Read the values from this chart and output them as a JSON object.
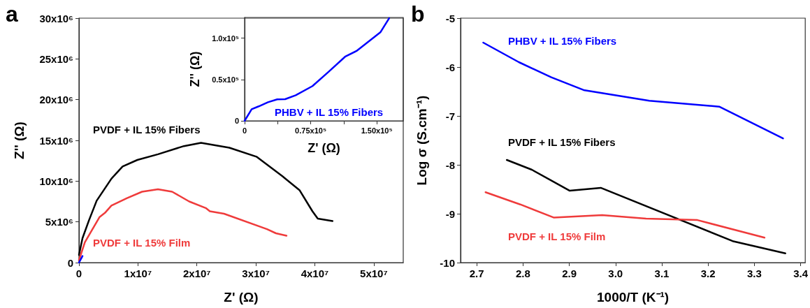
{
  "chart_data": [
    {
      "type": "line",
      "title": "a",
      "xlabel": "Z' (Ω)",
      "ylabel": "Z'' (Ω)",
      "xlim": [
        0,
        55000000
      ],
      "ylim": [
        0,
        30000000
      ],
      "xticks": [
        0,
        {
          "value": 10000000,
          "label": "1x10⁷"
        },
        {
          "value": 20000000,
          "label": "2x10⁷"
        },
        {
          "value": 30000000,
          "label": "3x10⁷"
        },
        {
          "value": 40000000,
          "label": "4x10⁷"
        },
        {
          "value": 50000000,
          "label": "5x10⁷"
        }
      ],
      "yticks": [
        0,
        {
          "value": 5000000,
          "label": "5x10⁶"
        },
        {
          "value": 10000000,
          "label": "10x10⁶"
        },
        {
          "value": 15000000,
          "label": "15x10⁶"
        },
        {
          "value": 20000000,
          "label": "20x10⁶"
        },
        {
          "value": 25000000,
          "label": "25x10⁶"
        },
        {
          "value": 30000000,
          "label": "30x10⁶"
        }
      ],
      "grid": false,
      "legend": false,
      "marker": "none",
      "line_style": "solid",
      "series": [
        {
          "name": "PVDF + IL 15% Fibers",
          "color": "#000000",
          "x": [
            0,
            600000,
            1700000,
            3000000,
            5500000,
            7400000,
            9900000,
            13400000,
            17800000,
            20700000,
            25500000,
            30100000,
            34500000,
            37400000,
            39600000,
            40500000,
            43000000
          ],
          "values": [
            950000,
            3000000,
            5200000,
            7600000,
            10300000,
            11800000,
            12600000,
            13300000,
            14300000,
            14700000,
            14100000,
            13000000,
            10600000,
            8900000,
            6300000,
            5400000,
            5100000
          ]
        },
        {
          "name": "PVDF + IL 15% Film",
          "color": "#ef3b3b",
          "x": [
            0,
            1000000,
            3500000,
            4400000,
            5500000,
            8100000,
            10700000,
            13400000,
            15800000,
            18700000,
            21500000,
            22200000,
            24600000,
            31900000,
            33400000,
            35200000
          ],
          "values": [
            300000,
            2500000,
            5600000,
            6100000,
            7000000,
            7900000,
            8700000,
            9000000,
            8700000,
            7500000,
            6700000,
            6300000,
            6000000,
            4100000,
            3600000,
            3300000
          ]
        },
        {
          "color": "#0000ff",
          "x": [
            0,
            600000
          ],
          "values": [
            0,
            800000
          ]
        }
      ]
    },
    {
      "type": "line",
      "xlabel": "Z' (Ω)",
      "ylabel": "Z'' (Ω)",
      "xlim": [
        0,
        180000
      ],
      "ylim": [
        0,
        125000
      ],
      "xticks": [
        0,
        {
          "value": 37500,
          "label": null
        },
        {
          "value": 75000,
          "label": "0.75x10⁵"
        },
        {
          "value": 112500,
          "label": null
        },
        {
          "value": 150000,
          "label": "1.50x10⁵"
        }
      ],
      "yticks": [
        0,
        {
          "value": 50000,
          "label": "0.5x10⁵"
        },
        {
          "value": 100000,
          "label": "1.0x10⁵"
        }
      ],
      "grid": false,
      "legend": false,
      "marker": "none",
      "line_style": "solid",
      "series": [
        {
          "name": "PHBV + IL 15% Fibers",
          "color": "#0000ff",
          "x": [
            0,
            8000,
            16000,
            26500,
            37000,
            46000,
            58000,
            77000,
            95000,
            114000,
            127000,
            154000,
            164000
          ],
          "values": [
            0,
            14000,
            17500,
            22500,
            26000,
            26200,
            31000,
            42000,
            59000,
            77500,
            84500,
            107000,
            124000
          ]
        }
      ]
    },
    {
      "type": "line",
      "title": "b",
      "xlabel": "1000/T (K⁻¹)",
      "ylabel": "Log σ (S.cm⁻¹)",
      "xlim": [
        2.665,
        3.41
      ],
      "ylim": [
        -10,
        -5
      ],
      "xticks": [
        2.7,
        2.8,
        2.9,
        {
          "value": 3,
          "label": "3.0"
        },
        3.1,
        3.2,
        3.3,
        3.4
      ],
      "yticks": [
        -10,
        -9,
        -8,
        -7,
        -6,
        -5
      ],
      "grid": false,
      "legend": false,
      "marker": "none",
      "line_style": "solid",
      "series": [
        {
          "name": "PHBV + IL 15% Fibers",
          "color": "#0000ff",
          "x": [
            2.714,
            2.791,
            2.861,
            2.931,
            3.073,
            3.224,
            3.362
          ],
          "values": [
            -5.5,
            -5.9,
            -6.21,
            -6.47,
            -6.69,
            -6.81,
            -7.46
          ]
        },
        {
          "name": "PVDF + IL 15% Fibers",
          "color": "#000000",
          "x": [
            2.765,
            2.819,
            2.901,
            2.968,
            3.253,
            3.367
          ],
          "values": [
            -7.9,
            -8.1,
            -8.53,
            -8.47,
            -9.56,
            -9.81
          ]
        },
        {
          "name": "PVDF + IL 15% Film",
          "color": "#ef3b3b",
          "x": [
            2.719,
            2.794,
            2.867,
            2.971,
            3.066,
            3.177,
            3.322
          ],
          "values": [
            -8.56,
            -8.81,
            -9.08,
            -9.03,
            -9.1,
            -9.13,
            -9.49
          ]
        }
      ]
    }
  ]
}
